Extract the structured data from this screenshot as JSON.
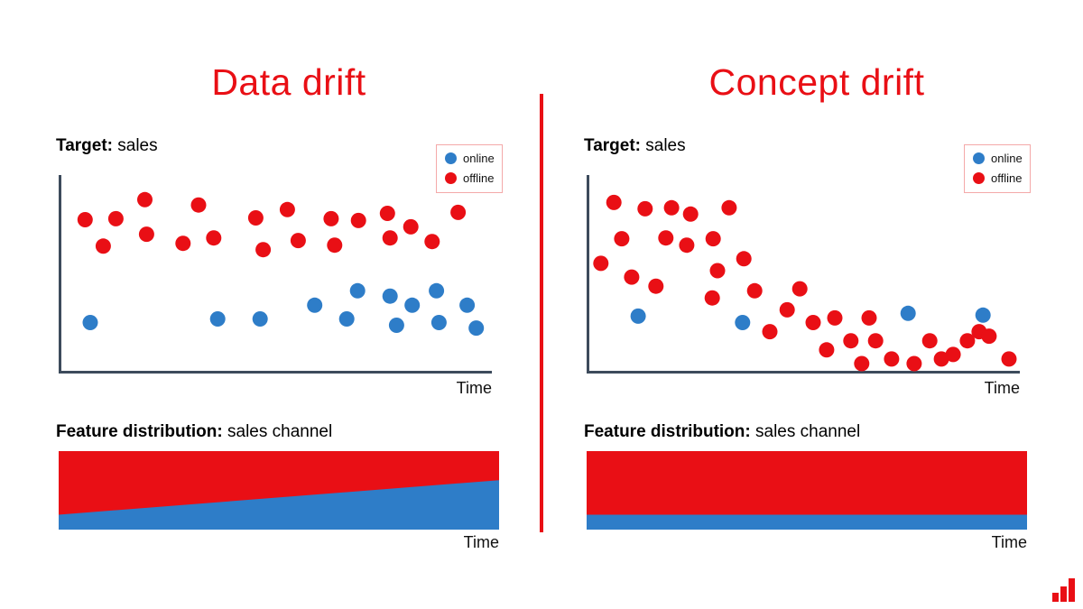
{
  "panels": [
    {
      "title": "Data drift"
    },
    {
      "title": "Concept drift"
    }
  ],
  "labels": {
    "target": "Target:",
    "target_value": "sales",
    "feature": "Feature distribution:",
    "feature_value": "sales channel",
    "time": "Time"
  },
  "legend": {
    "online": "online",
    "offline": "offline"
  },
  "colors": {
    "red": "#e90f15",
    "blue": "#2e7dc8",
    "axis": "#3d4b5c",
    "title": "#e90f15",
    "legend_border": "#f4a9a9",
    "divider": "#e90f15",
    "logo": "#e90f15"
  },
  "chart_data": [
    {
      "id": "data-drift-scatter",
      "type": "scatter",
      "title": "Target: sales",
      "xlabel": "Time",
      "ylabel": "",
      "grid": false,
      "legend_position": "top-right",
      "axes_style": "left and bottom spines only, no ticks, no tick labels",
      "coords_note": "points are [x%, y%] of plot area, y measured from top",
      "series": [
        {
          "name": "offline",
          "color_key": "red",
          "points": [
            [
              6.1,
              22.5
            ],
            [
              13.2,
              22.0
            ],
            [
              19.9,
              12.4
            ],
            [
              20.3,
              29.8
            ],
            [
              10.3,
              35.8
            ],
            [
              28.7,
              34.4
            ],
            [
              32.3,
              15.1
            ],
            [
              35.8,
              31.7
            ],
            [
              45.5,
              21.6
            ],
            [
              47.2,
              37.6
            ],
            [
              52.8,
              17.4
            ],
            [
              55.3,
              33.0
            ],
            [
              62.9,
              22.0
            ],
            [
              63.7,
              35.3
            ],
            [
              69.2,
              22.9
            ],
            [
              75.9,
              19.3
            ],
            [
              76.5,
              31.7
            ],
            [
              81.3,
              26.1
            ],
            [
              86.2,
              33.5
            ],
            [
              92.2,
              18.8
            ]
          ]
        },
        {
          "name": "online",
          "color_key": "blue",
          "points": [
            [
              7.3,
              74.3
            ],
            [
              36.7,
              72.5
            ],
            [
              46.5,
              72.5
            ],
            [
              59.1,
              65.6
            ],
            [
              66.5,
              72.5
            ],
            [
              69.0,
              58.3
            ],
            [
              76.5,
              61.0
            ],
            [
              78.0,
              75.7
            ],
            [
              81.6,
              65.6
            ],
            [
              87.2,
              58.3
            ],
            [
              87.8,
              74.3
            ],
            [
              94.3,
              65.6
            ],
            [
              96.4,
              77.1
            ]
          ]
        }
      ]
    },
    {
      "id": "data-drift-area",
      "type": "area",
      "title": "Feature distribution: sales channel",
      "xlabel": "Time",
      "stacking": "blue (online) on bottom, red (offline) fills remainder to 100%",
      "blue_share": {
        "start": 0.19,
        "end": 0.63
      }
    },
    {
      "id": "concept-drift-scatter",
      "type": "scatter",
      "title": "Target: sales",
      "xlabel": "Time",
      "ylabel": "",
      "grid": false,
      "legend_position": "top-right",
      "axes_style": "left and bottom spines only, no ticks, no tick labels",
      "coords_note": "points are [x%, y%] of plot area, y measured from top",
      "series": [
        {
          "name": "offline",
          "color_key": "red",
          "points": [
            [
              6.3,
              13.8
            ],
            [
              13.5,
              17.0
            ],
            [
              19.6,
              16.5
            ],
            [
              3.3,
              44.5
            ],
            [
              8.1,
              32.1
            ],
            [
              10.4,
              51.4
            ],
            [
              16.0,
              56.0
            ],
            [
              18.3,
              31.7
            ],
            [
              23.1,
              35.3
            ],
            [
              24.0,
              19.7
            ],
            [
              29.2,
              32.1
            ],
            [
              32.9,
              16.5
            ],
            [
              30.2,
              48.2
            ],
            [
              29.0,
              61.9
            ],
            [
              36.3,
              42.2
            ],
            [
              38.8,
              58.3
            ],
            [
              42.3,
              78.9
            ],
            [
              46.3,
              67.9
            ],
            [
              49.2,
              57.3
            ],
            [
              52.3,
              74.3
            ],
            [
              55.4,
              88.1
            ],
            [
              57.3,
              72.0
            ],
            [
              61.0,
              83.5
            ],
            [
              63.5,
              95.0
            ],
            [
              65.2,
              72.0
            ],
            [
              66.7,
              83.5
            ],
            [
              70.4,
              92.7
            ],
            [
              75.6,
              95.0
            ],
            [
              79.2,
              83.5
            ],
            [
              81.9,
              92.7
            ],
            [
              84.6,
              90.4
            ],
            [
              87.9,
              83.5
            ],
            [
              90.6,
              78.9
            ],
            [
              92.9,
              81.2
            ],
            [
              97.5,
              92.7
            ]
          ]
        },
        {
          "name": "online",
          "color_key": "blue",
          "points": [
            [
              11.9,
              71.1
            ],
            [
              36.0,
              74.3
            ],
            [
              74.2,
              69.7
            ],
            [
              91.5,
              70.6
            ]
          ]
        }
      ]
    },
    {
      "id": "concept-drift-area",
      "type": "area",
      "title": "Feature distribution: sales channel",
      "xlabel": "Time",
      "stacking": "blue (online) on bottom, red (offline) fills remainder to 100%",
      "blue_share": {
        "start": 0.19,
        "end": 0.19
      }
    }
  ]
}
